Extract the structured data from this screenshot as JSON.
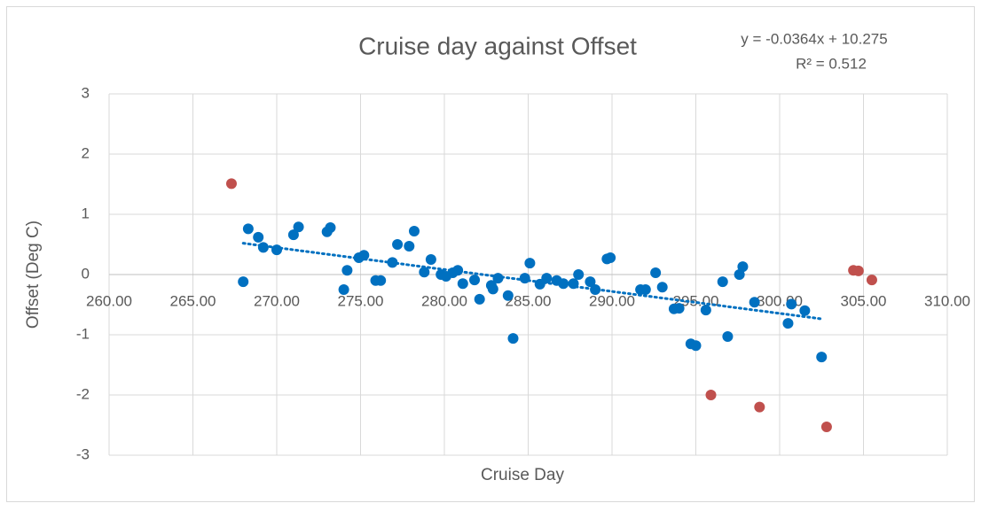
{
  "chart_data": {
    "type": "scatter",
    "title": "Cruise day against Offset",
    "xlabel": "Cruise Day",
    "ylabel": "Offset (Deg C)",
    "xlim": [
      260,
      310
    ],
    "ylim": [
      -3,
      3
    ],
    "xticks": [
      {
        "value": 260,
        "label": "260.00"
      },
      {
        "value": 265,
        "label": "265.00"
      },
      {
        "value": 270,
        "label": "270.00"
      },
      {
        "value": 275,
        "label": "275.00"
      },
      {
        "value": 280,
        "label": "280.00"
      },
      {
        "value": 285,
        "label": "285.00"
      },
      {
        "value": 290,
        "label": "290.00"
      },
      {
        "value": 295,
        "label": "295.00"
      },
      {
        "value": 300,
        "label": "300.00"
      },
      {
        "value": 305,
        "label": "305.00"
      },
      {
        "value": 310,
        "label": "310.00"
      }
    ],
    "yticks": [
      -3,
      -2,
      -1,
      0,
      1,
      2,
      3
    ],
    "grid": true,
    "series": [
      {
        "color": "#0070c0",
        "x": [
          268.0,
          268.3,
          268.9,
          269.2,
          270.0,
          271.0,
          271.3,
          273.0,
          273.2,
          274.0,
          274.2,
          274.9,
          275.2,
          275.9,
          276.2,
          276.9,
          277.2,
          277.9,
          278.2,
          278.8,
          279.2,
          279.8,
          280.1,
          280.5,
          280.8,
          281.1,
          281.8,
          282.1,
          282.8,
          282.9,
          283.2,
          283.8,
          284.1,
          284.8,
          285.1,
          285.7,
          286.1,
          286.7,
          287.1,
          287.7,
          288.0,
          288.7,
          289.0,
          289.7,
          289.9,
          291.7,
          292.0,
          292.6,
          293.0,
          293.7,
          294.0,
          294.7,
          295.0,
          295.6,
          296.6,
          296.9,
          297.6,
          297.8,
          298.5,
          300.5,
          300.7,
          301.5,
          302.5
        ],
        "values": [
          -0.12,
          0.76,
          0.62,
          0.45,
          0.41,
          0.66,
          0.79,
          0.71,
          0.78,
          -0.25,
          0.07,
          0.28,
          0.32,
          -0.1,
          -0.1,
          0.2,
          0.5,
          0.47,
          0.72,
          0.04,
          0.25,
          0.0,
          -0.03,
          0.03,
          0.07,
          -0.15,
          -0.09,
          -0.41,
          -0.18,
          -0.24,
          -0.06,
          -0.35,
          -1.06,
          -0.06,
          0.19,
          -0.16,
          -0.06,
          -0.1,
          -0.15,
          -0.15,
          0.0,
          -0.12,
          -0.25,
          0.26,
          0.28,
          -0.25,
          -0.25,
          0.03,
          -0.21,
          -0.57,
          -0.56,
          -1.15,
          -1.18,
          -0.59,
          -0.12,
          -1.03,
          0.0,
          0.13,
          -0.46,
          -0.81,
          -0.49,
          -0.6,
          -1.37
        ]
      },
      {
        "color": "#c0504d",
        "x": [
          267.3,
          295.9,
          298.8,
          302.8,
          304.4,
          304.7,
          305.5
        ],
        "values": [
          1.51,
          -2.0,
          -2.2,
          -2.53,
          0.07,
          0.06,
          -0.09
        ]
      }
    ],
    "trendline": {
      "slope": -0.0364,
      "intercept": 10.275,
      "color": "#0070c0",
      "equation": "y = -0.0364x + 10.275",
      "r_squared": "R² = 0.512"
    }
  }
}
